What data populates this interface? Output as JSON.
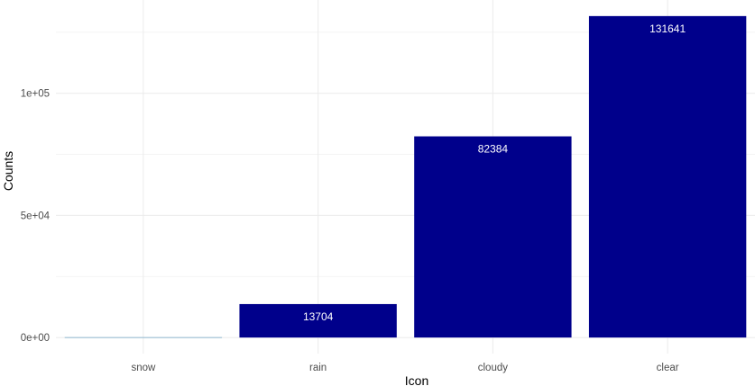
{
  "chart_data": {
    "type": "bar",
    "categories": [
      "snow",
      "rain",
      "cloudy",
      "clear"
    ],
    "values": [
      180,
      13704,
      82384,
      131641
    ],
    "data_labels": [
      "",
      "13704",
      "82384",
      "131641"
    ],
    "title": "",
    "xlabel": "Icon",
    "ylabel": "Counts",
    "ylim": [
      -6582,
      138223
    ],
    "y_ticks": [
      0,
      50000,
      100000
    ],
    "y_tick_labels": [
      "0e+00",
      "5e+04",
      "1e+05"
    ],
    "y_minor_ticks": [
      25000,
      75000,
      125000
    ],
    "grid": true,
    "legend": "none",
    "colors": {
      "bar_fill": "#00008b",
      "snow_fill": "#8fb8cf",
      "grid": "#ebebeb",
      "background": "#ffffff"
    }
  }
}
